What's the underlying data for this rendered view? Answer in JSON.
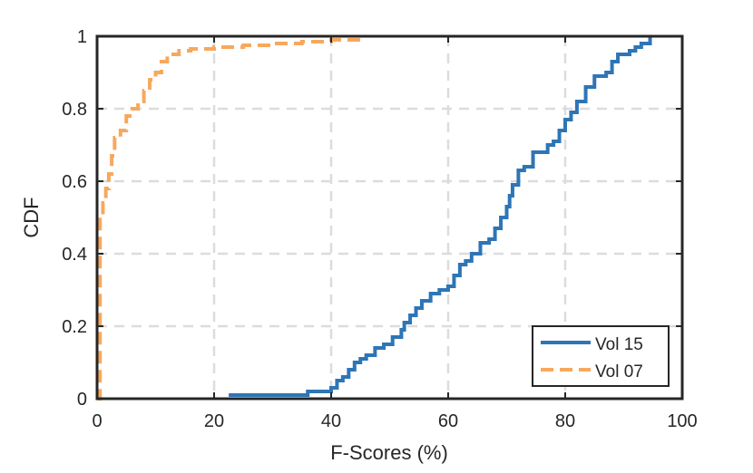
{
  "chart_data": {
    "type": "line",
    "title": "",
    "xlabel": "F-Scores (%)",
    "ylabel": "CDF",
    "xlim": [
      0,
      100
    ],
    "ylim": [
      0,
      1
    ],
    "xticks": [
      0,
      20,
      40,
      60,
      80,
      100
    ],
    "xtick_labels": [
      "0",
      "20",
      "40",
      "60",
      "80",
      "100"
    ],
    "yticks": [
      0,
      0.2,
      0.4,
      0.6,
      0.8,
      1
    ],
    "ytick_labels": [
      "0",
      "0.2",
      "0.4",
      "0.6",
      "0.8",
      "1"
    ],
    "grid": true,
    "legend_position": "bottom-right",
    "series": [
      {
        "name": "Vol 15",
        "color": "#2e75b6",
        "style": "solid",
        "x": [
          22.5,
          36.0,
          40.0,
          41.0,
          42.0,
          43.0,
          44.0,
          45.0,
          46.0,
          47.5,
          49.0,
          50.5,
          52.0,
          52.5,
          53.5,
          54.5,
          55.5,
          57.0,
          58.5,
          60.0,
          61.0,
          62.0,
          63.0,
          64.0,
          65.5,
          67.0,
          68.0,
          69.0,
          70.0,
          70.5,
          71.0,
          72.0,
          73.0,
          74.5,
          77.0,
          78.0,
          79.0,
          80.0,
          81.0,
          82.0,
          83.5,
          85.0,
          86.0,
          87.0,
          88.0,
          89.0,
          90.0,
          91.0,
          92.0,
          93.0,
          94.5
        ],
        "y": [
          0.01,
          0.02,
          0.03,
          0.05,
          0.06,
          0.08,
          0.1,
          0.11,
          0.12,
          0.14,
          0.15,
          0.17,
          0.19,
          0.21,
          0.23,
          0.25,
          0.27,
          0.29,
          0.3,
          0.31,
          0.34,
          0.37,
          0.38,
          0.4,
          0.43,
          0.44,
          0.47,
          0.5,
          0.53,
          0.56,
          0.59,
          0.63,
          0.64,
          0.68,
          0.7,
          0.71,
          0.74,
          0.77,
          0.79,
          0.82,
          0.86,
          0.89,
          0.89,
          0.9,
          0.93,
          0.95,
          0.95,
          0.96,
          0.97,
          0.98,
          1.0
        ],
        "draw_x": [
          22.5,
          36.0,
          40.0,
          41.0,
          42.0,
          43.0,
          44.0,
          45.0,
          46.0,
          47.5,
          49.0,
          50.5,
          52.0,
          52.5,
          53.5,
          54.5,
          55.5,
          57.0,
          58.5,
          60.0,
          61.0,
          62.0,
          63.0,
          64.0,
          65.5,
          67.0,
          68.0,
          69.0,
          70.0,
          70.5,
          71.0,
          72.0,
          73.0,
          74.5,
          77.0,
          78.0,
          79.0,
          80.0,
          81.0,
          82.0,
          83.5,
          85.0,
          86.0,
          87.0,
          88.0,
          89.0,
          90.0,
          91.0,
          92.0,
          93.0,
          94.5
        ]
      },
      {
        "name": "Vol 07",
        "color": "#f7a85e",
        "style": "dashed",
        "x": [
          0.0,
          0.5,
          1.0,
          1.5,
          2.0,
          2.5,
          3.0,
          4.0,
          5.0,
          6.0,
          7.0,
          8.0,
          9.0,
          10.0,
          11.0,
          12.0,
          14.0,
          16.0,
          20.0,
          25.0,
          30.0,
          35.0,
          40.0,
          45.0
        ],
        "y": [
          0.0,
          0.5,
          0.54,
          0.58,
          0.62,
          0.67,
          0.72,
          0.74,
          0.78,
          0.8,
          0.82,
          0.85,
          0.88,
          0.9,
          0.93,
          0.95,
          0.96,
          0.965,
          0.97,
          0.975,
          0.98,
          0.985,
          0.99,
          1.0
        ]
      }
    ]
  }
}
